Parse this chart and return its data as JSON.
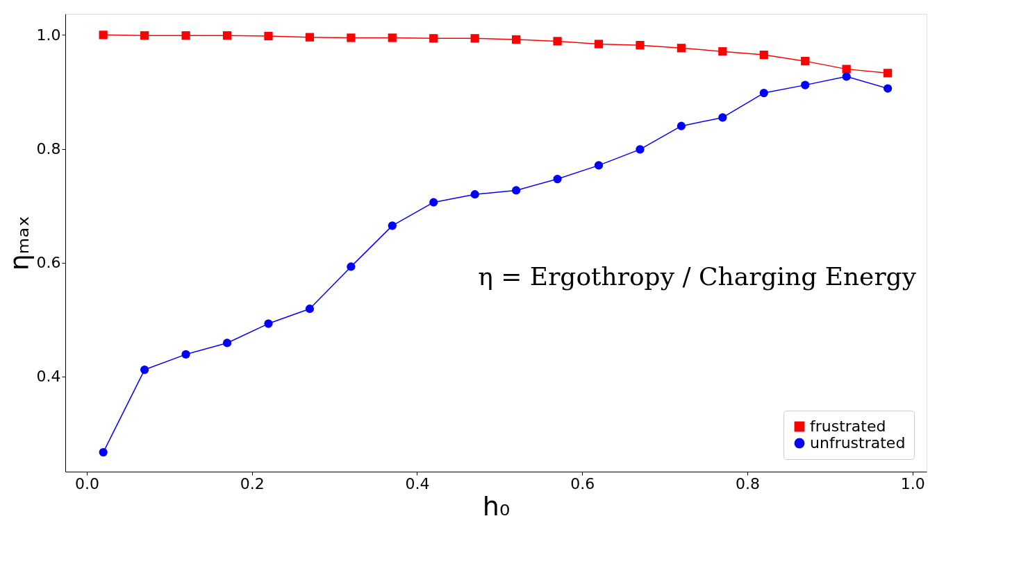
{
  "chart_data": {
    "type": "line",
    "xlabel": "h₀",
    "ylabel": "ηₘₐₓ",
    "x": [
      0.02,
      0.07,
      0.12,
      0.17,
      0.22,
      0.27,
      0.32,
      0.37,
      0.42,
      0.47,
      0.52,
      0.57,
      0.62,
      0.67,
      0.72,
      0.77,
      0.82,
      0.87,
      0.92,
      0.97
    ],
    "series": [
      {
        "name": "frustrated",
        "color": "#ff0000",
        "marker": "square",
        "values": [
          1.0,
          0.999,
          0.999,
          0.999,
          0.998,
          0.996,
          0.995,
          0.995,
          0.994,
          0.994,
          0.992,
          0.989,
          0.984,
          0.982,
          0.977,
          0.971,
          0.965,
          0.954,
          0.94,
          0.933
        ]
      },
      {
        "name": "unfrustrated",
        "color": "#0000ff",
        "marker": "circle",
        "values": [
          0.267,
          0.412,
          0.439,
          0.459,
          0.493,
          0.519,
          0.593,
          0.665,
          0.706,
          0.72,
          0.727,
          0.747,
          0.771,
          0.799,
          0.84,
          0.855,
          0.898,
          0.912,
          0.927,
          0.906
        ]
      }
    ],
    "xlim": [
      -0.026,
      1.017
    ],
    "ylim": [
      0.233,
      1.037
    ],
    "xticks": [
      {
        "value": 0.0,
        "label": "0.0"
      },
      {
        "value": 0.2,
        "label": "0.2"
      },
      {
        "value": 0.4,
        "label": "0.4"
      },
      {
        "value": 0.6,
        "label": "0.6"
      },
      {
        "value": 0.8,
        "label": "0.8"
      },
      {
        "value": 1.0,
        "label": "1.0"
      }
    ],
    "yticks": [
      {
        "value": 0.4,
        "label": "0.4"
      },
      {
        "value": 0.6,
        "label": "0.6"
      },
      {
        "value": 0.8,
        "label": "0.8"
      },
      {
        "value": 1.0,
        "label": "1.0"
      }
    ],
    "annotations": [
      "η = Ergothropy / Charging Energy"
    ],
    "grid": false,
    "legend": "bottom right",
    "line_style": "solid"
  }
}
